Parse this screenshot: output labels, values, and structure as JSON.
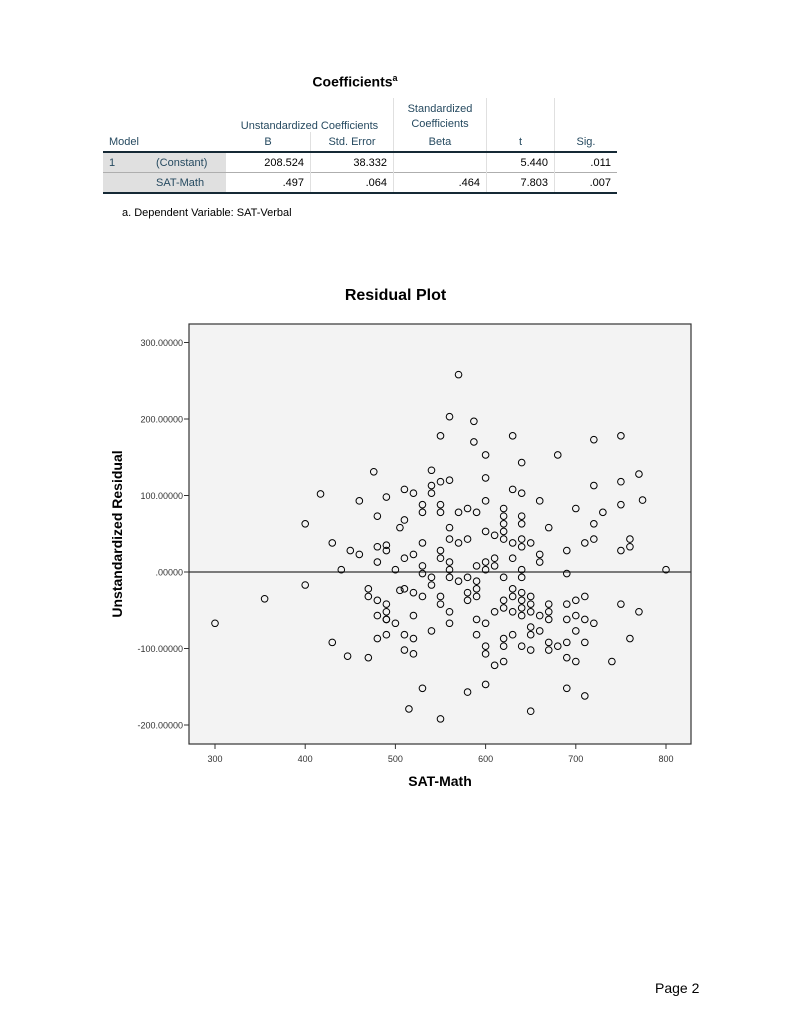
{
  "coefficients_table": {
    "title": "Coefficients",
    "title_superscript": "a",
    "group_headers": {
      "unstandardized": "Unstandardized Coefficients",
      "standardized_line1": "Standardized",
      "standardized_line2": "Coefficients"
    },
    "columns": [
      "Model",
      "",
      "B",
      "Std. Error",
      "Beta",
      "t",
      "Sig."
    ],
    "rows": [
      {
        "model": "1",
        "label": "(Constant)",
        "b": "208.524",
        "std_error": "38.332",
        "beta": "",
        "t": "5.440",
        "sig": ".011"
      },
      {
        "model": "",
        "label": "SAT-Math",
        "b": ".497",
        "std_error": ".064",
        "beta": ".464",
        "t": "7.803",
        "sig": ".007"
      }
    ],
    "footnote": "a. Dependent Variable: SAT-Verbal"
  },
  "page": {
    "number_label": "Page 2"
  },
  "colors": {
    "header_text": "#264a60",
    "row_label_bg": "#e0e0e0",
    "plot_bg": "#f3f3f3",
    "marker": "#000000"
  },
  "chart_data": {
    "type": "scatter",
    "title": "Residual Plot",
    "xlabel": "SAT-Math",
    "ylabel": "Unstandardized Residual",
    "xlim": [
      272,
      827
    ],
    "ylim": [
      -230,
      325
    ],
    "xticks": [
      300,
      400,
      500,
      600,
      700,
      800
    ],
    "xtick_labels": [
      "300",
      "400",
      "500",
      "600",
      "700",
      "800"
    ],
    "yticks": [
      -200,
      -100,
      0,
      100,
      200,
      300
    ],
    "ytick_labels": [
      "-200.00000",
      "-100.00000",
      ".00000",
      "100.00000",
      "200.00000",
      "300.00000"
    ],
    "reference_line": {
      "y": 0
    },
    "grid": false,
    "legend": null,
    "points": [
      [
        300,
        -67
      ],
      [
        355,
        -35
      ],
      [
        400,
        63
      ],
      [
        400,
        -17
      ],
      [
        417,
        102
      ],
      [
        430,
        38
      ],
      [
        430,
        -92
      ],
      [
        440,
        3
      ],
      [
        447,
        -110
      ],
      [
        450,
        28
      ],
      [
        460,
        93
      ],
      [
        460,
        23
      ],
      [
        470,
        -22
      ],
      [
        470,
        -32
      ],
      [
        470,
        -112
      ],
      [
        476,
        131
      ],
      [
        480,
        73
      ],
      [
        480,
        33
      ],
      [
        480,
        13
      ],
      [
        480,
        -37
      ],
      [
        480,
        -57
      ],
      [
        480,
        -87
      ],
      [
        490,
        98
      ],
      [
        490,
        35
      ],
      [
        490,
        28
      ],
      [
        490,
        -42
      ],
      [
        490,
        -52
      ],
      [
        490,
        -62
      ],
      [
        490,
        -62
      ],
      [
        490,
        -82
      ],
      [
        500,
        3
      ],
      [
        500,
        -67
      ],
      [
        505,
        58
      ],
      [
        505,
        -24
      ],
      [
        510,
        108
      ],
      [
        510,
        68
      ],
      [
        510,
        18
      ],
      [
        510,
        -22
      ],
      [
        510,
        -82
      ],
      [
        510,
        -102
      ],
      [
        515,
        -179
      ],
      [
        520,
        103
      ],
      [
        520,
        23
      ],
      [
        520,
        -27
      ],
      [
        520,
        -57
      ],
      [
        520,
        -87
      ],
      [
        520,
        -107
      ],
      [
        530,
        88
      ],
      [
        530,
        78
      ],
      [
        530,
        38
      ],
      [
        530,
        8
      ],
      [
        530,
        -2
      ],
      [
        530,
        -32
      ],
      [
        530,
        -152
      ],
      [
        540,
        133
      ],
      [
        540,
        113
      ],
      [
        540,
        103
      ],
      [
        540,
        -7
      ],
      [
        540,
        -17
      ],
      [
        540,
        -77
      ],
      [
        550,
        178
      ],
      [
        550,
        118
      ],
      [
        550,
        88
      ],
      [
        550,
        78
      ],
      [
        550,
        28
      ],
      [
        550,
        18
      ],
      [
        550,
        -32
      ],
      [
        550,
        -42
      ],
      [
        550,
        -192
      ],
      [
        560,
        203
      ],
      [
        560,
        120
      ],
      [
        560,
        58
      ],
      [
        560,
        43
      ],
      [
        560,
        13
      ],
      [
        560,
        3
      ],
      [
        560,
        -7
      ],
      [
        560,
        -52
      ],
      [
        560,
        -67
      ],
      [
        570,
        258
      ],
      [
        570,
        78
      ],
      [
        570,
        38
      ],
      [
        570,
        -12
      ],
      [
        580,
        83
      ],
      [
        580,
        43
      ],
      [
        580,
        -7
      ],
      [
        580,
        -27
      ],
      [
        580,
        -37
      ],
      [
        580,
        -157
      ],
      [
        587,
        197
      ],
      [
        587,
        170
      ],
      [
        590,
        78
      ],
      [
        590,
        8
      ],
      [
        590,
        -12
      ],
      [
        590,
        -22
      ],
      [
        590,
        -32
      ],
      [
        590,
        -62
      ],
      [
        590,
        -82
      ],
      [
        600,
        153
      ],
      [
        600,
        123
      ],
      [
        600,
        93
      ],
      [
        600,
        53
      ],
      [
        600,
        13
      ],
      [
        600,
        3
      ],
      [
        600,
        -67
      ],
      [
        600,
        -97
      ],
      [
        600,
        -107
      ],
      [
        600,
        -147
      ],
      [
        610,
        48
      ],
      [
        610,
        18
      ],
      [
        610,
        8
      ],
      [
        610,
        -52
      ],
      [
        610,
        -122
      ],
      [
        620,
        83
      ],
      [
        620,
        73
      ],
      [
        620,
        63
      ],
      [
        620,
        53
      ],
      [
        620,
        43
      ],
      [
        620,
        -7
      ],
      [
        620,
        -37
      ],
      [
        620,
        -47
      ],
      [
        620,
        -87
      ],
      [
        620,
        -97
      ],
      [
        620,
        -117
      ],
      [
        630,
        178
      ],
      [
        630,
        108
      ],
      [
        630,
        38
      ],
      [
        630,
        18
      ],
      [
        630,
        -22
      ],
      [
        630,
        -32
      ],
      [
        630,
        -52
      ],
      [
        630,
        -82
      ],
      [
        640,
        143
      ],
      [
        640,
        103
      ],
      [
        640,
        73
      ],
      [
        640,
        63
      ],
      [
        640,
        43
      ],
      [
        640,
        33
      ],
      [
        640,
        3
      ],
      [
        640,
        -7
      ],
      [
        640,
        -27
      ],
      [
        640,
        -37
      ],
      [
        640,
        -47
      ],
      [
        640,
        -57
      ],
      [
        640,
        -97
      ],
      [
        650,
        38
      ],
      [
        650,
        -32
      ],
      [
        650,
        -42
      ],
      [
        650,
        -52
      ],
      [
        650,
        -72
      ],
      [
        650,
        -82
      ],
      [
        650,
        -102
      ],
      [
        650,
        -182
      ],
      [
        660,
        93
      ],
      [
        660,
        23
      ],
      [
        660,
        13
      ],
      [
        660,
        -57
      ],
      [
        660,
        -77
      ],
      [
        670,
        58
      ],
      [
        670,
        -42
      ],
      [
        670,
        -52
      ],
      [
        670,
        -62
      ],
      [
        670,
        -92
      ],
      [
        670,
        -102
      ],
      [
        680,
        153
      ],
      [
        680,
        -97
      ],
      [
        690,
        28
      ],
      [
        690,
        -2
      ],
      [
        690,
        -42
      ],
      [
        690,
        -62
      ],
      [
        690,
        -92
      ],
      [
        690,
        -112
      ],
      [
        690,
        -152
      ],
      [
        700,
        83
      ],
      [
        700,
        -37
      ],
      [
        700,
        -57
      ],
      [
        700,
        -77
      ],
      [
        700,
        -117
      ],
      [
        710,
        38
      ],
      [
        710,
        -32
      ],
      [
        710,
        -62
      ],
      [
        710,
        -92
      ],
      [
        710,
        -162
      ],
      [
        720,
        173
      ],
      [
        720,
        113
      ],
      [
        720,
        63
      ],
      [
        720,
        43
      ],
      [
        720,
        -67
      ],
      [
        730,
        78
      ],
      [
        740,
        -117
      ],
      [
        750,
        178
      ],
      [
        750,
        118
      ],
      [
        750,
        88
      ],
      [
        750,
        28
      ],
      [
        750,
        -42
      ],
      [
        760,
        43
      ],
      [
        760,
        33
      ],
      [
        760,
        -87
      ],
      [
        770,
        128
      ],
      [
        770,
        -52
      ],
      [
        774,
        94
      ],
      [
        800,
        3
      ]
    ]
  }
}
